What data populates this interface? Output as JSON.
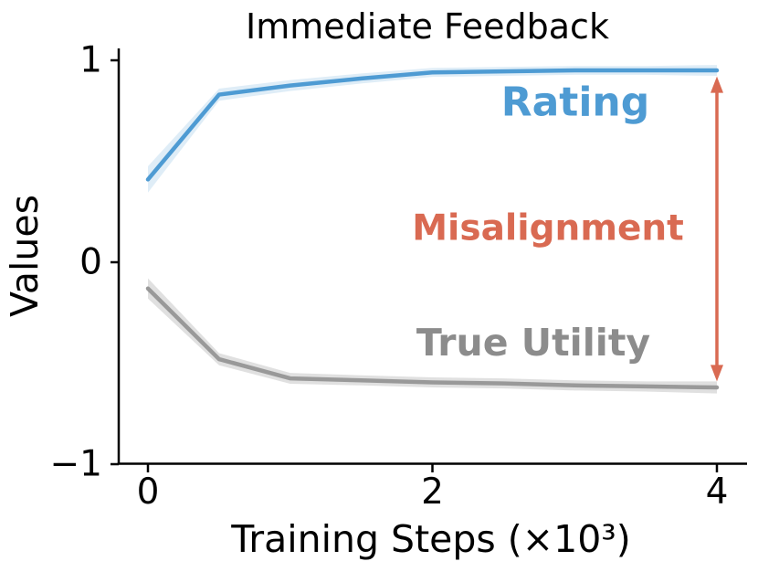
{
  "figure": {
    "background": "#ffffff",
    "axis_color": "#000000"
  },
  "chart_data": {
    "type": "line",
    "title": "Immediate Feedback",
    "xlabel": "Training Steps (×10³)",
    "ylabel": "Values",
    "xlim": [
      -0.2,
      4.2
    ],
    "ylim": [
      -1,
      1
    ],
    "grid": false,
    "legend_position": "inline-annotations",
    "xticks": {
      "values": [
        0,
        2,
        4
      ],
      "labels": [
        "0",
        "2",
        "4"
      ]
    },
    "yticks": {
      "values": [
        1,
        0,
        -1
      ],
      "labels": [
        "1",
        "0",
        "−1"
      ]
    },
    "x": [
      0,
      0.5,
      1,
      1.5,
      2,
      2.5,
      3,
      3.5,
      4
    ],
    "series": [
      {
        "name": "Rating",
        "color": "#4e9bd3",
        "band_opacity": 0.18,
        "values": [
          0.41,
          0.83,
          0.875,
          0.91,
          0.94,
          0.945,
          0.95,
          0.95,
          0.95
        ],
        "band": [
          0.065,
          0.03,
          0.027,
          0.025,
          0.022,
          0.022,
          0.022,
          0.022,
          0.027
        ]
      },
      {
        "name": "True Utility",
        "color": "#999999",
        "band_opacity": 0.3,
        "values": [
          -0.13,
          -0.48,
          -0.575,
          -0.585,
          -0.595,
          -0.6,
          -0.61,
          -0.615,
          -0.62
        ],
        "band": [
          0.05,
          0.03,
          0.027,
          0.025,
          0.025,
          0.025,
          0.025,
          0.025,
          0.03
        ]
      }
    ]
  },
  "annotations": {
    "rating": {
      "label": "Rating",
      "color": "#4e9bd3"
    },
    "misalignment": {
      "label": "Misalignment",
      "color": "#d96a52"
    },
    "true_utility": {
      "label": "True Utility",
      "color": "#8c8c8c"
    },
    "arrow": {
      "x": 4,
      "y_from": 0.92,
      "y_to": -0.59,
      "color": "#d96a52"
    }
  }
}
